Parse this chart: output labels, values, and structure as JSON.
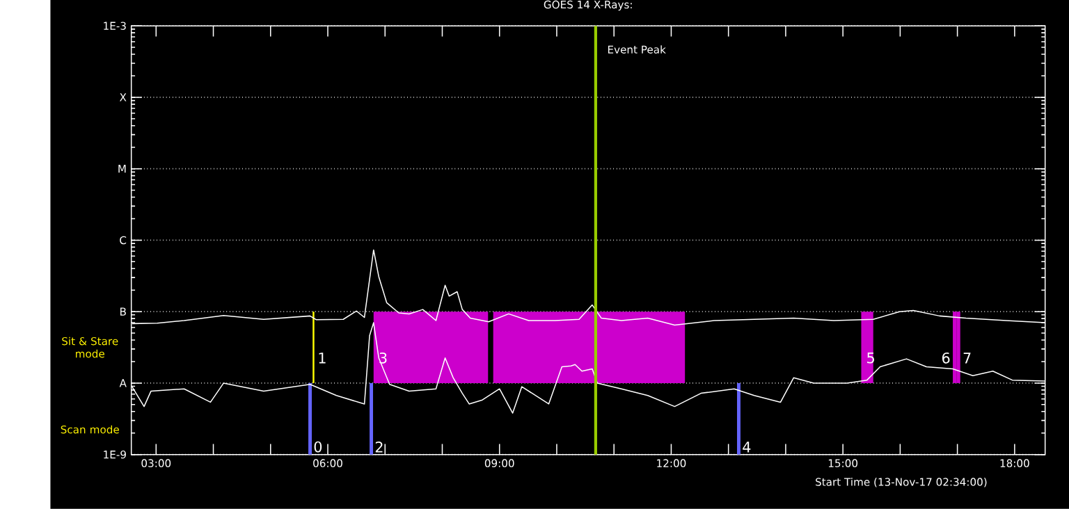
{
  "chart_data": {
    "type": "line",
    "title": "GOES 14 X-Rays:",
    "xlabel": "Start Time (13-Nov-17 02:34:00)",
    "log": "y",
    "grid": "y",
    "xlim": [
      2.567,
      18.533
    ],
    "ylim": [
      1e-09,
      0.001
    ],
    "xticks": [
      {
        "value": 3,
        "label": "03:00"
      },
      {
        "value": 4,
        "label": null
      },
      {
        "value": 5,
        "label": null
      },
      {
        "value": 6,
        "label": "06:00"
      },
      {
        "value": 7,
        "label": null
      },
      {
        "value": 8,
        "label": null
      },
      {
        "value": 9,
        "label": "09:00"
      },
      {
        "value": 10,
        "label": null
      },
      {
        "value": 11,
        "label": null
      },
      {
        "value": 12,
        "label": "12:00"
      },
      {
        "value": 13,
        "label": null
      },
      {
        "value": 14,
        "label": null
      },
      {
        "value": 15,
        "label": "15:00"
      },
      {
        "value": 16,
        "label": null
      },
      {
        "value": 17,
        "label": null
      },
      {
        "value": 18,
        "label": "18:00"
      }
    ],
    "yticks": [
      {
        "value": 1e-09,
        "label": "1E-9"
      },
      {
        "value": 1e-08,
        "label": "A"
      },
      {
        "value": 1e-07,
        "label": "B"
      },
      {
        "value": 1e-06,
        "label": "C"
      },
      {
        "value": 1e-05,
        "label": "M"
      },
      {
        "value": 0.0001,
        "label": "X"
      },
      {
        "value": 0.001,
        "label": "1E-3"
      }
    ],
    "series": [
      {
        "color": "#ffffff",
        "x": [
          2.58,
          3.02,
          3.49,
          4.18,
          4.88,
          5.69,
          5.8,
          6.27,
          6.5,
          6.64,
          6.8,
          6.89,
          7.03,
          7.24,
          7.42,
          7.66,
          7.89,
          8.05,
          8.12,
          8.26,
          8.35,
          8.49,
          8.81,
          9.16,
          9.51,
          9.97,
          10.39,
          10.62,
          10.78,
          11.13,
          11.59,
          12.06,
          12.75,
          13.45,
          14.14,
          14.84,
          15.53,
          15.99,
          16.23,
          16.69,
          17.15,
          17.85,
          18.53
        ],
        "values": [
          6.8e-08,
          6.9e-08,
          7.5e-08,
          8.8e-08,
          7.8e-08,
          8.7e-08,
          7.7e-08,
          7.8e-08,
          1.02e-07,
          8.3e-08,
          7.3e-07,
          3.1e-07,
          1.33e-07,
          9.6e-08,
          9.3e-08,
          1.07e-07,
          7.5e-08,
          2.34e-07,
          1.65e-07,
          1.9e-07,
          1.07e-07,
          8.1e-08,
          7.2e-08,
          9.3e-08,
          7.5e-08,
          7.5e-08,
          7.8e-08,
          1.24e-07,
          8.1e-08,
          7.5e-08,
          8.1e-08,
          6.5e-08,
          7.5e-08,
          7.8e-08,
          8.1e-08,
          7.5e-08,
          7.8e-08,
          1e-07,
          1.04e-07,
          8.7e-08,
          8.1e-08,
          7.5e-08,
          7e-08
        ]
      },
      {
        "color": "#ffffff",
        "x": [
          2.58,
          2.79,
          2.91,
          3.49,
          3.95,
          4.18,
          4.88,
          5.69,
          6.15,
          6.64,
          6.73,
          6.8,
          6.89,
          7.08,
          7.42,
          7.89,
          8.05,
          8.19,
          8.35,
          8.47,
          8.7,
          9.0,
          9.23,
          9.39,
          9.86,
          10.09,
          10.25,
          10.32,
          10.44,
          10.62,
          10.71,
          11.13,
          11.59,
          12.06,
          12.52,
          13.1,
          13.45,
          13.91,
          14.14,
          14.49,
          15.07,
          15.42,
          15.65,
          16.11,
          16.46,
          16.92,
          17.27,
          17.62,
          17.96,
          18.53
        ],
        "values": [
          8.9e-09,
          4.7e-09,
          7.7e-09,
          8.3e-09,
          5.4e-09,
          1e-08,
          7.7e-09,
          9.6e-09,
          6.7e-09,
          5.1e-09,
          4.6e-08,
          7e-08,
          2.25e-08,
          9.6e-09,
          7.7e-09,
          8.3e-09,
          2.25e-08,
          1.19e-08,
          7.2e-09,
          5.1e-09,
          5.8e-09,
          8.3e-09,
          3.8e-09,
          8.9e-09,
          5.1e-09,
          1.69e-08,
          1.74e-08,
          1.82e-08,
          1.47e-08,
          1.58e-08,
          1e-08,
          8.3e-09,
          6.7e-09,
          4.7e-09,
          7.2e-09,
          8.3e-09,
          6.7e-09,
          5.4e-09,
          1.19e-08,
          1e-08,
          1e-08,
          1.1e-08,
          1.69e-08,
          2.18e-08,
          1.69e-08,
          1.58e-08,
          1.27e-08,
          1.47e-08,
          1.1e-08,
          1.07e-08
        ]
      }
    ],
    "bands": [
      {
        "axis": "x",
        "from": 5.66,
        "to": 5.72,
        "label": "0",
        "color": "#6464ff"
      },
      {
        "axis": "x",
        "from": 5.735,
        "to": 5.765,
        "label": "1",
        "color": "#ffff00"
      },
      {
        "axis": "x",
        "from": 6.73,
        "to": 6.79,
        "label": "2",
        "color": "#6464ff"
      },
      {
        "axis": "x",
        "from": 6.8,
        "to": 8.8,
        "label": "3",
        "color": "#cc00cc"
      },
      {
        "axis": "x",
        "from": 8.89,
        "to": 12.24,
        "color": "#cc00cc"
      },
      {
        "axis": "x",
        "from": 13.15,
        "to": 13.21,
        "label": "4",
        "color": "#6464ff"
      },
      {
        "axis": "x",
        "from": 15.32,
        "to": 15.53,
        "label": "5",
        "color": "#cc00cc"
      },
      {
        "axis": "x",
        "from": 16.92,
        "to": 16.99,
        "label": "6",
        "color": "#cc00cc"
      },
      {
        "axis": "x",
        "from": 16.99,
        "to": 17.05,
        "label": "7",
        "color": "#cc00cc"
      }
    ],
    "ref_lines": [
      {
        "axis": "x",
        "value": 10.68,
        "label": "Event Peak",
        "color": "#99cc00"
      }
    ],
    "annotations": [
      "Sit & Stare mode",
      "Scan mode"
    ]
  }
}
